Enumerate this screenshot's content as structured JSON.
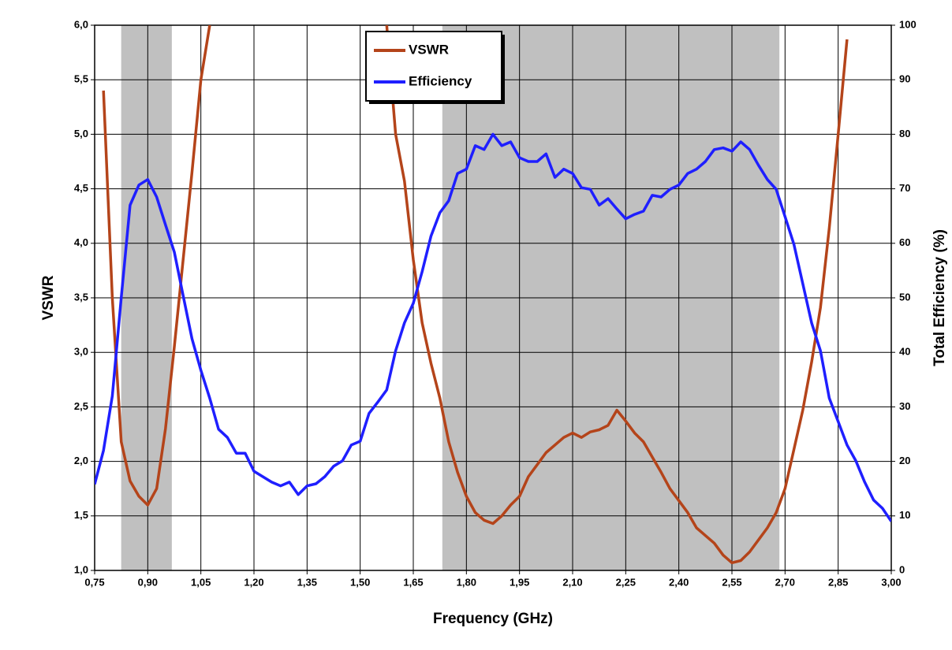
{
  "chart_data": {
    "type": "line",
    "xlabel": "Frequency (GHz)",
    "ylabel": "VSWR",
    "y2label": "Total Efficiency (%)",
    "xlim": [
      0.75,
      3.0
    ],
    "xticks": [
      {
        "value": 0.75,
        "label": "0,75"
      },
      {
        "value": 0.9,
        "label": "0,90"
      },
      {
        "value": 1.05,
        "label": "1,05"
      },
      {
        "value": 1.2,
        "label": "1,20"
      },
      {
        "value": 1.35,
        "label": "1,35"
      },
      {
        "value": 1.5,
        "label": "1,50"
      },
      {
        "value": 1.65,
        "label": "1,65"
      },
      {
        "value": 1.8,
        "label": "1,80"
      },
      {
        "value": 1.95,
        "label": "1,95"
      },
      {
        "value": 2.1,
        "label": "2,10"
      },
      {
        "value": 2.25,
        "label": "2,25"
      },
      {
        "value": 2.4,
        "label": "2,40"
      },
      {
        "value": 2.55,
        "label": "2,55"
      },
      {
        "value": 2.7,
        "label": "2,70"
      },
      {
        "value": 2.85,
        "label": "2,85"
      },
      {
        "value": 3.0,
        "label": "3,00"
      }
    ],
    "ylim": [
      1.0,
      6.0
    ],
    "yticks": [
      {
        "value": 1.0,
        "label": "1,0"
      },
      {
        "value": 1.5,
        "label": "1,5"
      },
      {
        "value": 2.0,
        "label": "2,0"
      },
      {
        "value": 2.5,
        "label": "2,5"
      },
      {
        "value": 3.0,
        "label": "3,0"
      },
      {
        "value": 3.5,
        "label": "3,5"
      },
      {
        "value": 4.0,
        "label": "4,0"
      },
      {
        "value": 4.5,
        "label": "4,5"
      },
      {
        "value": 5.0,
        "label": "5,0"
      },
      {
        "value": 5.5,
        "label": "5,5"
      },
      {
        "value": 6.0,
        "label": "6,0"
      }
    ],
    "y2lim": [
      0,
      100
    ],
    "y2ticks": [
      0,
      10,
      20,
      30,
      40,
      50,
      60,
      70,
      80,
      90,
      100
    ],
    "grid": true,
    "legend": "top",
    "shaded_ranges": [
      [
        0.825,
        0.968
      ],
      [
        1.732,
        2.684
      ]
    ],
    "shade_color": "#c0c0c0",
    "x": [
      0.75,
      0.775,
      0.8,
      0.825,
      0.85,
      0.875,
      0.9,
      0.925,
      0.95,
      0.975,
      1.0,
      1.025,
      1.05,
      1.075,
      1.1,
      1.125,
      1.15,
      1.175,
      1.2,
      1.225,
      1.25,
      1.275,
      1.3,
      1.325,
      1.35,
      1.375,
      1.4,
      1.425,
      1.45,
      1.475,
      1.5,
      1.525,
      1.55,
      1.575,
      1.6,
      1.625,
      1.65,
      1.675,
      1.7,
      1.725,
      1.75,
      1.775,
      1.8,
      1.825,
      1.85,
      1.875,
      1.9,
      1.925,
      1.95,
      1.975,
      2.0,
      2.025,
      2.05,
      2.075,
      2.1,
      2.125,
      2.15,
      2.175,
      2.2,
      2.225,
      2.25,
      2.275,
      2.3,
      2.325,
      2.35,
      2.375,
      2.4,
      2.425,
      2.45,
      2.475,
      2.5,
      2.525,
      2.55,
      2.575,
      2.6,
      2.625,
      2.65,
      2.675,
      2.7,
      2.725,
      2.75,
      2.775,
      2.8,
      2.825,
      2.85,
      2.875,
      2.9,
      2.925,
      2.95,
      2.975,
      3.0
    ],
    "series": [
      {
        "name": "VSWR",
        "color": "#b4441a",
        "values": [
          null,
          5.4,
          3.5,
          2.18,
          1.82,
          1.68,
          1.6,
          1.75,
          2.3,
          3.05,
          3.85,
          4.65,
          5.5,
          6.0,
          null,
          null,
          null,
          null,
          null,
          null,
          null,
          null,
          null,
          null,
          null,
          null,
          null,
          null,
          null,
          null,
          null,
          null,
          null,
          6.0,
          5.0,
          4.57,
          3.85,
          3.27,
          2.9,
          2.58,
          2.18,
          1.9,
          1.68,
          1.53,
          1.46,
          1.43,
          1.5,
          1.6,
          1.68,
          1.86,
          1.97,
          2.08,
          2.15,
          2.22,
          2.26,
          2.22,
          2.27,
          2.29,
          2.33,
          2.47,
          2.37,
          2.26,
          2.18,
          2.04,
          1.9,
          1.75,
          1.64,
          1.53,
          1.39,
          1.32,
          1.25,
          1.14,
          1.07,
          1.09,
          1.17,
          1.28,
          1.39,
          1.53,
          1.75,
          2.11,
          2.47,
          2.91,
          3.41,
          4.14,
          5.0,
          5.87,
          null,
          null,
          null,
          null,
          null
        ]
      },
      {
        "name": "Efficiency",
        "color": "#1f1fff",
        "axis": "y2",
        "values": [
          15.8,
          22,
          32,
          50,
          67,
          70.7,
          71.7,
          68.5,
          63.4,
          58.4,
          50.4,
          42.5,
          36.7,
          31.6,
          25.9,
          24.4,
          21.5,
          21.5,
          18.2,
          17.2,
          16.2,
          15.5,
          16.2,
          13.9,
          15.5,
          15.9,
          17.2,
          19.1,
          20.1,
          23,
          23.7,
          28.8,
          30.9,
          33.1,
          40.3,
          45.4,
          49,
          54.8,
          61.3,
          65.6,
          67.8,
          72.8,
          73.6,
          77.9,
          77.2,
          80,
          77.9,
          78.6,
          75.7,
          75,
          75,
          76.4,
          72.1,
          73.6,
          72.8,
          70.2,
          69.9,
          67,
          68.2,
          66.3,
          64.5,
          65.3,
          65.9,
          68.8,
          68.5,
          69.9,
          70.7,
          72.8,
          73.6,
          75,
          77.2,
          77.5,
          76.9,
          78.6,
          77.2,
          74.3,
          71.7,
          69.9,
          64.9,
          59.8,
          52.6,
          45.4,
          40.3,
          31.6,
          27.3,
          23,
          20.1,
          16.2,
          12.9,
          11.4,
          9
        ]
      }
    ]
  }
}
